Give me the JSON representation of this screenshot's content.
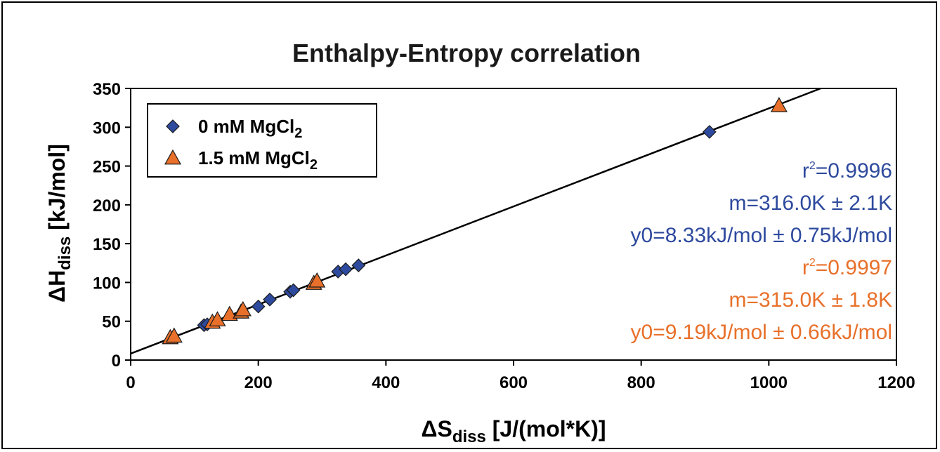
{
  "chart_data": {
    "type": "scatter",
    "title": "Enthalpy-Entropy correlation",
    "xlabel": {
      "main": "ΔS",
      "sub": "diss",
      "rest": " [J/(mol*K)]"
    },
    "ylabel": {
      "main": "ΔH",
      "sub": "diss",
      "rest": " [kJ/mol]"
    },
    "xlim": [
      0,
      1200
    ],
    "ylim": [
      0,
      350
    ],
    "xticks": [
      0,
      200,
      400,
      600,
      800,
      1000,
      1200
    ],
    "yticks": [
      0,
      50,
      100,
      150,
      200,
      250,
      300,
      350
    ],
    "legend_position": "top-left",
    "series": [
      {
        "name": "0 mM MgCl",
        "name_sub": "2",
        "marker": "diamond",
        "color": "#2e4a9e",
        "points": [
          [
            115,
            45
          ],
          [
            120,
            46
          ],
          [
            200,
            69
          ],
          [
            218,
            78
          ],
          [
            250,
            88
          ],
          [
            255,
            90
          ],
          [
            325,
            114
          ],
          [
            337,
            117
          ],
          [
            357,
            122
          ],
          [
            907,
            294
          ]
        ]
      },
      {
        "name": "1.5 mM MgCl",
        "name_sub": "2",
        "marker": "triangle",
        "color": "#e8702a",
        "points": [
          [
            62,
            29
          ],
          [
            68,
            31
          ],
          [
            128,
            49
          ],
          [
            136,
            52
          ],
          [
            155,
            59
          ],
          [
            173,
            62
          ],
          [
            176,
            65
          ],
          [
            287,
            99
          ],
          [
            292,
            102
          ],
          [
            1016,
            328
          ]
        ]
      }
    ],
    "fit_line": {
      "x": [
        0,
        1200
      ],
      "slope": 0.316,
      "intercept": 8.33,
      "color": "#000000"
    },
    "annotations": [
      {
        "id": "r2_a",
        "base": "r",
        "sup": "2",
        "rest": "=0.9996",
        "color": "#2e4a9e"
      },
      {
        "id": "m_a",
        "text": "m=316.0K ± 2.1K",
        "color": "#2e4a9e"
      },
      {
        "id": "y0_a",
        "text": "y0=8.33kJ/mol ± 0.75kJ/mol",
        "color": "#2e4a9e"
      },
      {
        "id": "r2_b",
        "base": "r",
        "sup": "2",
        "rest": "=0.9997",
        "color": "#e8702a"
      },
      {
        "id": "m_b",
        "text": "m=315.0K ± 1.8K",
        "color": "#e8702a"
      },
      {
        "id": "y0_b",
        "text": "y0=9.19kJ/mol ± 0.66kJ/mol",
        "color": "#e8702a"
      }
    ]
  }
}
